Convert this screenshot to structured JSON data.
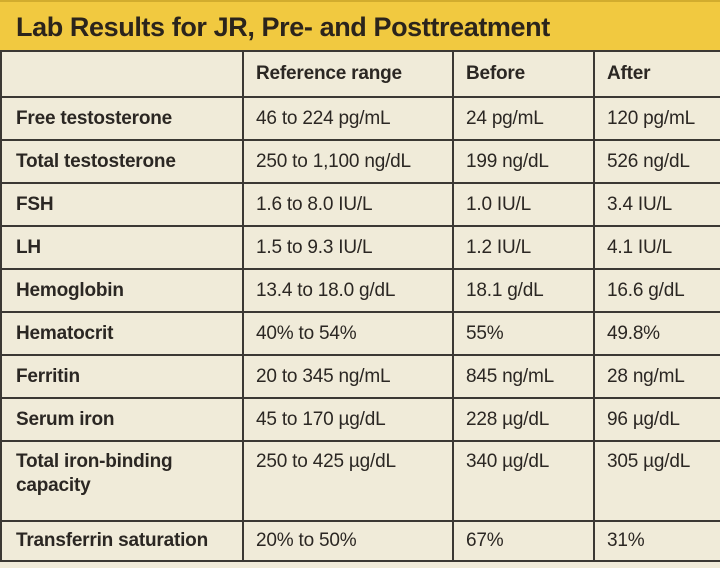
{
  "title": "Lab Results for JR, Pre- and Posttreatment",
  "colors": {
    "yellow": "#F1C940",
    "yellow_edge": "#D2AC2E",
    "cream": "#F0EBD9",
    "line": "#3B3833",
    "text": "#2B2723",
    "title_text": "#2B241C"
  },
  "table": {
    "columns": [
      "",
      "Reference range",
      "Before",
      "After"
    ],
    "rows": [
      {
        "name": "Free testosterone",
        "reference": "46 to 224 pg/mL",
        "before": "24 pg/mL",
        "after": "120 pg/mL"
      },
      {
        "name": "Total testosterone",
        "reference": "250 to 1,100 ng/dL",
        "before": "199 ng/dL",
        "after": "526 ng/dL"
      },
      {
        "name": "FSH",
        "reference": "1.6 to 8.0 IU/L",
        "before": "1.0 IU/L",
        "after": "3.4 IU/L"
      },
      {
        "name": "LH",
        "reference": "1.5 to 9.3 IU/L",
        "before": "1.2 IU/L",
        "after": "4.1 IU/L"
      },
      {
        "name": "Hemoglobin",
        "reference": "13.4 to 18.0 g/dL",
        "before": "18.1 g/dL",
        "after": "16.6 g/dL"
      },
      {
        "name": "Hematocrit",
        "reference": "40% to 54%",
        "before": "55%",
        "after": "49.8%"
      },
      {
        "name": "Ferritin",
        "reference": "20 to 345 ng/mL",
        "before": "845 ng/mL",
        "after": "28 ng/mL"
      },
      {
        "name": "Serum iron",
        "reference": "45 to 170 µg/dL",
        "before": "228 µg/dL",
        "after": "96 µg/dL"
      },
      {
        "name": "Total iron-binding capacity",
        "reference": "250 to 425 µg/dL",
        "before": "340 µg/dL",
        "after": "305 µg/dL"
      },
      {
        "name": "Transferrin saturation",
        "reference": "20% to 50%",
        "before": "67%",
        "after": "31%"
      }
    ]
  }
}
